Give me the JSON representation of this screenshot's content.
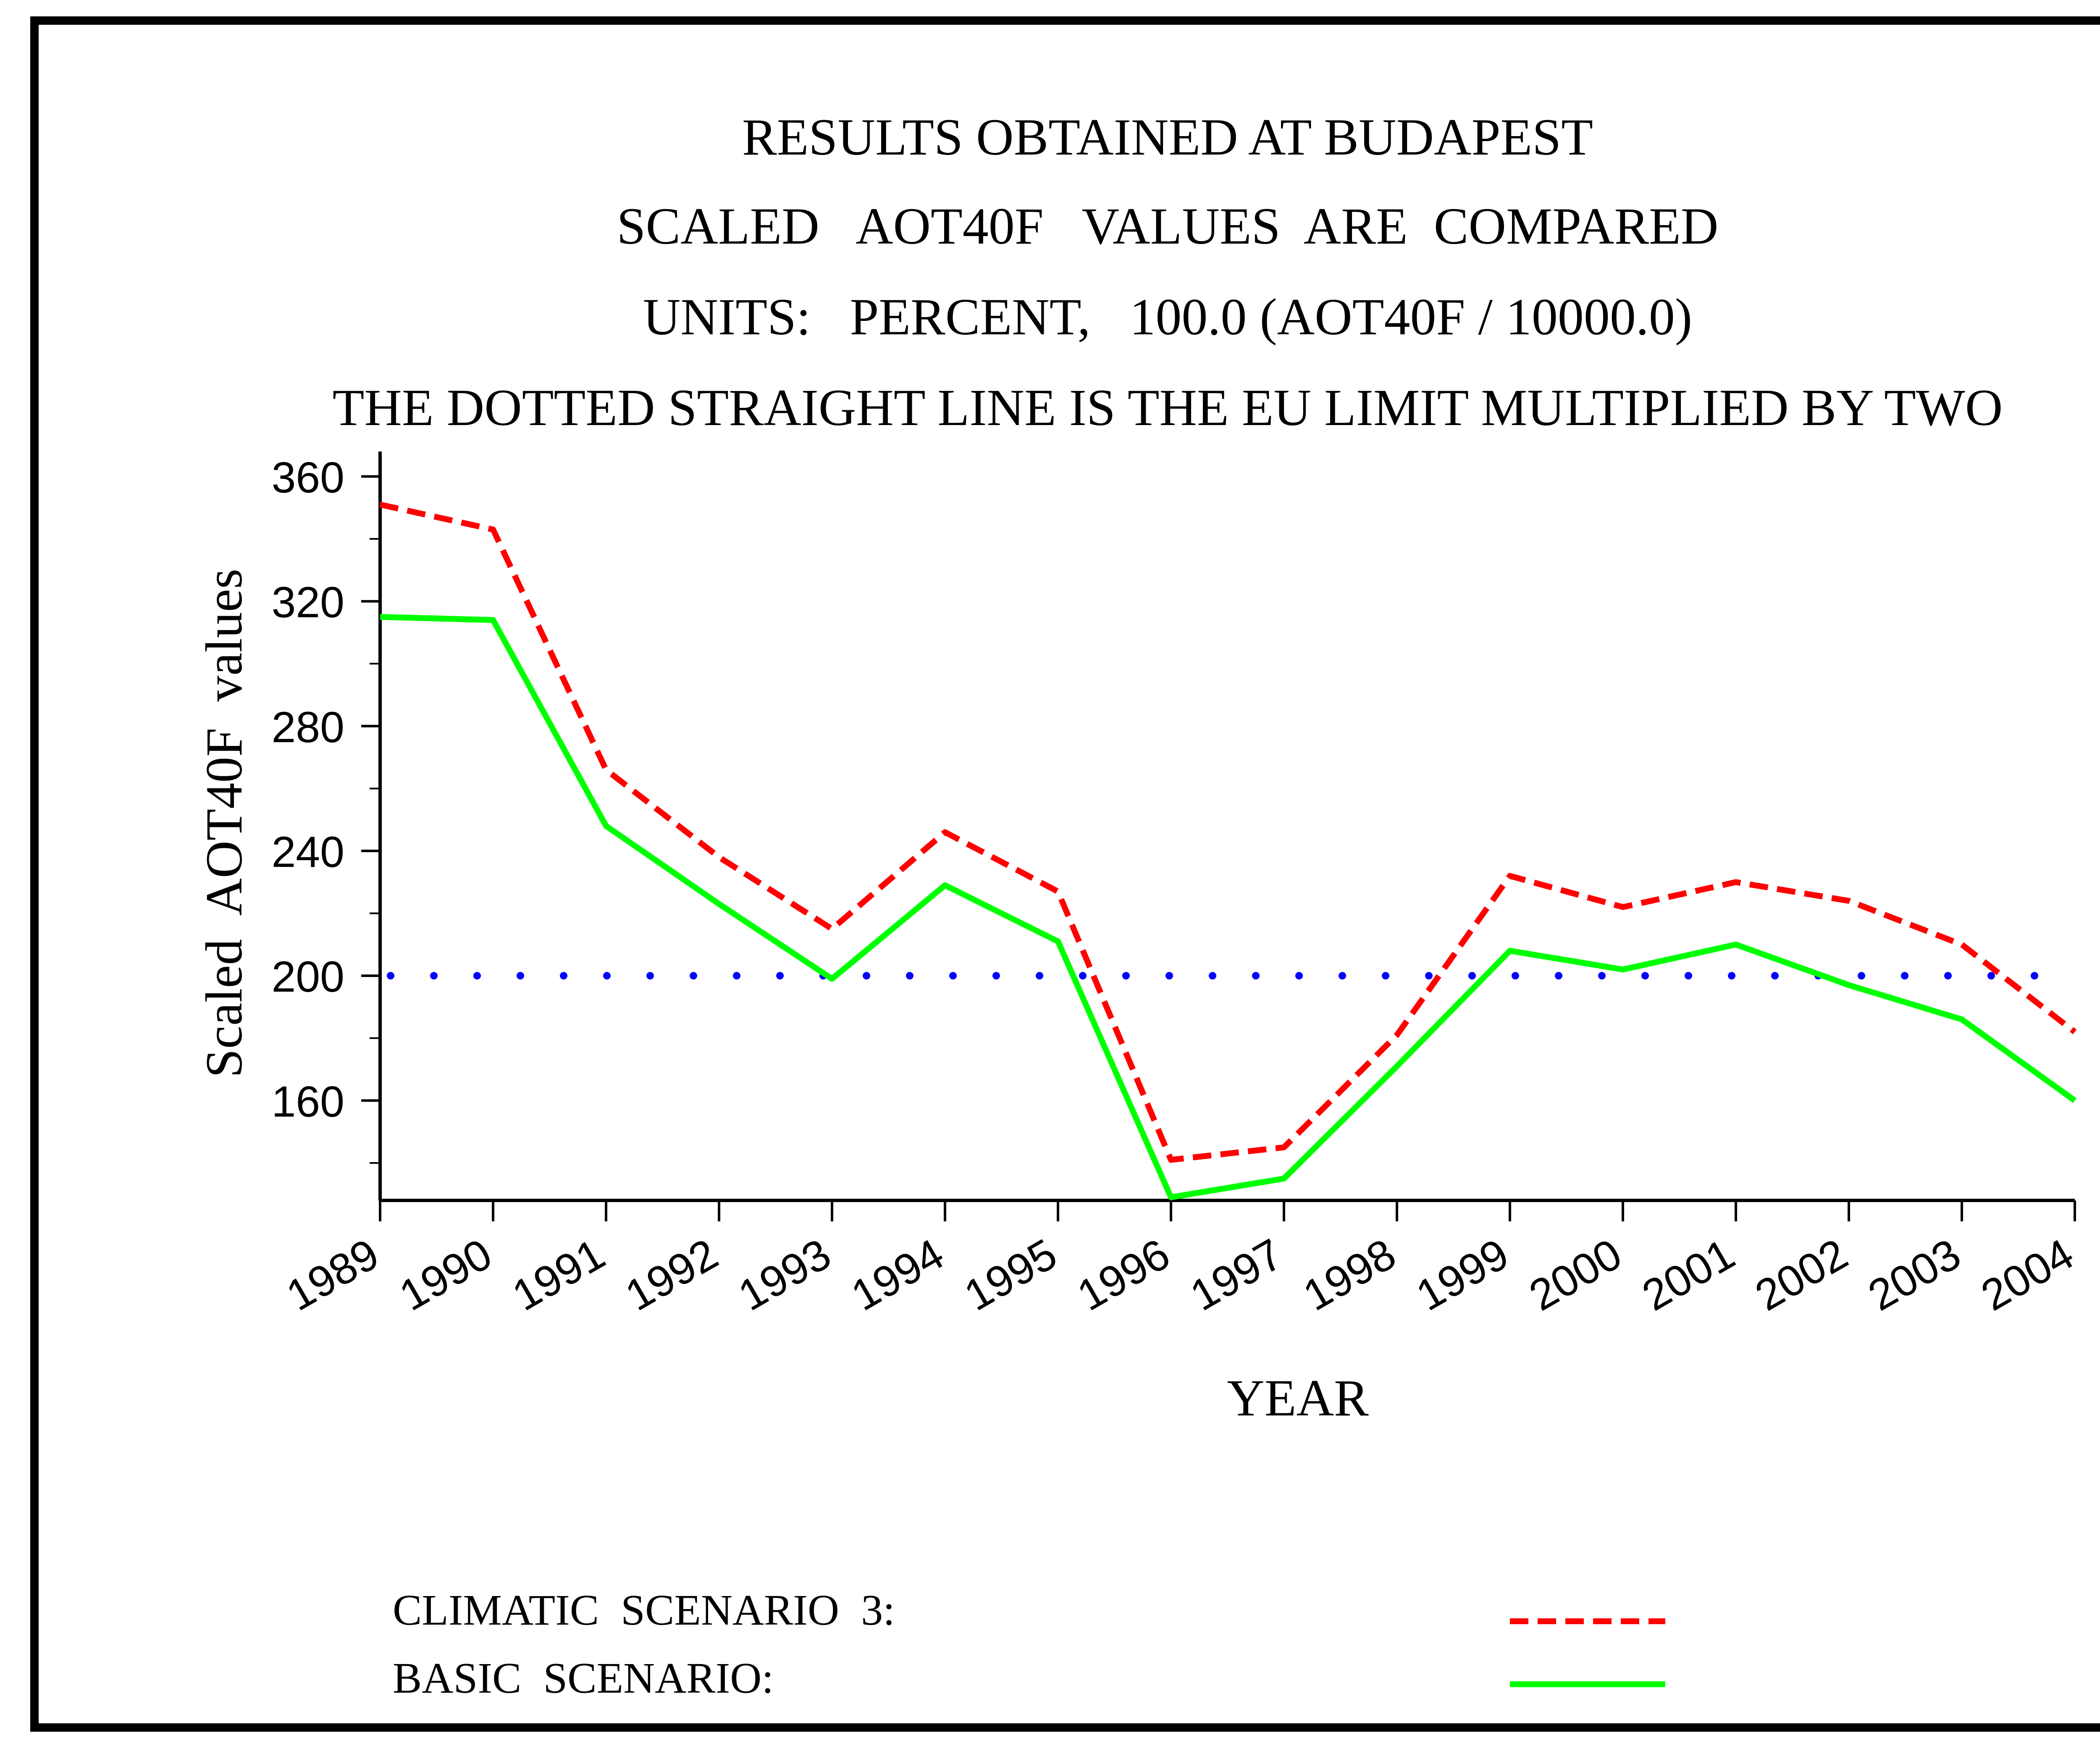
{
  "chart_data": {
    "type": "line",
    "title_lines": [
      "RESULTS OBTAINED AT BUDAPEST",
      "SCALED   AOT40F   VALUES  ARE  COMPARED",
      "UNITS:   PERCENT,   100.0 (AOT40F / 10000.0)",
      "THE DOTTED STRAIGHT LINE IS THE EU LIMIT MULTIPLIED BY TWO"
    ],
    "xlabel": "YEAR",
    "ylabel": "Scaled  AOT40F  values",
    "categories": [
      "1989",
      "1990",
      "1991",
      "1992",
      "1993",
      "1994",
      "1995",
      "1996",
      "1997",
      "1998",
      "1999",
      "2000",
      "2001",
      "2002",
      "2003",
      "2004"
    ],
    "ylim": [
      128,
      368
    ],
    "yticks": [
      160,
      200,
      240,
      280,
      320,
      360
    ],
    "yminor_step": 20,
    "series": [
      {
        "name": "CLIMATIC  SCENARIO  3:",
        "color": "#ff0000",
        "style": "dashed",
        "values": [
          351,
          343,
          266,
          238,
          215,
          246,
          227,
          141,
          145,
          181,
          232,
          222,
          230,
          224,
          210,
          182
        ]
      },
      {
        "name": "BASIC  SCENARIO:",
        "color": "#00ff00",
        "style": "solid",
        "values": [
          315,
          314,
          248,
          223,
          199,
          229,
          211,
          129,
          135,
          171,
          208,
          202,
          210,
          197,
          186,
          160
        ]
      }
    ],
    "reference_line": {
      "value": 200,
      "color": "#0000ff",
      "style": "dotted"
    },
    "legend_position": "bottom"
  }
}
